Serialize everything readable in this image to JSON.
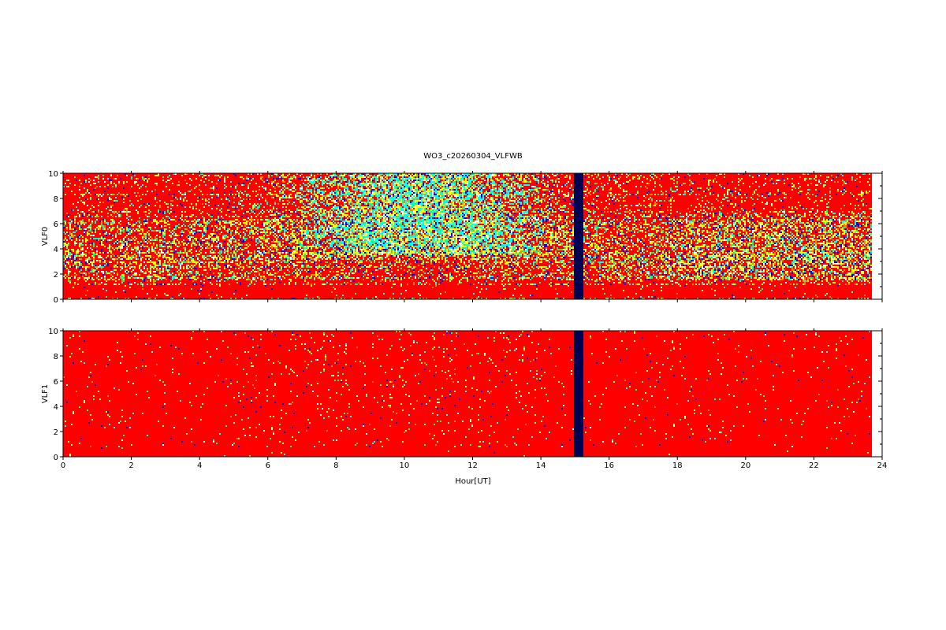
{
  "chart_data": [
    {
      "type": "heatmap",
      "title": "WO3_c20260304_VLFWB",
      "ylabel": "VLF0",
      "xlabel": "",
      "xlim": [
        0,
        24
      ],
      "ylim": [
        0,
        10
      ],
      "xticks": [
        "0",
        "2",
        "4",
        "6",
        "8",
        "10",
        "12",
        "14",
        "16",
        "18",
        "20",
        "22",
        "24"
      ],
      "yticks": [
        "0",
        "2",
        "4",
        "6",
        "8",
        "10"
      ],
      "data_end_hour": 23.67,
      "gap_hours": [
        15.0,
        15.2
      ],
      "activity": "high noise 7-14 UT, 4-10 kHz; banded activity 1.5-6 kHz across the day",
      "colors": {
        "background": "#ff0000",
        "levels": [
          "#ffff00",
          "#00ffff",
          "#00ff80",
          "#0000ff",
          "#ffffff"
        ],
        "gap": "#000050"
      }
    },
    {
      "type": "heatmap",
      "ylabel": "VLF1",
      "xlabel": "Hour[UT]",
      "xlim": [
        0,
        24
      ],
      "ylim": [
        0,
        10
      ],
      "xticks": [
        "0",
        "2",
        "4",
        "6",
        "8",
        "10",
        "12",
        "14",
        "16",
        "18",
        "20",
        "22",
        "24"
      ],
      "yticks": [
        "0",
        "2",
        "4",
        "6",
        "8",
        "10"
      ],
      "data_end_hour": 23.67,
      "gap_hours": [
        15.0,
        15.2
      ],
      "activity": "mostly quiet, sparse points",
      "colors": {
        "background": "#ff0000",
        "gap": "#000050"
      }
    }
  ]
}
